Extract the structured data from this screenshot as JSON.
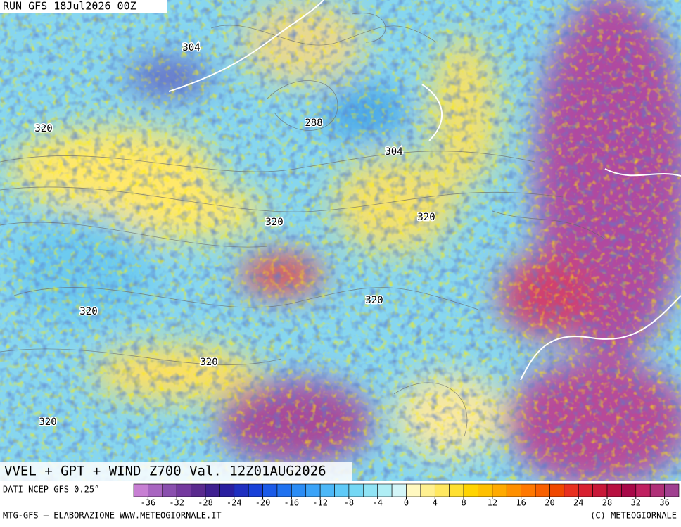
{
  "header": {
    "run": "RUN GFS 18Jul2026 00Z"
  },
  "map": {
    "contour_labels": [
      304,
      288,
      304,
      320,
      320,
      320,
      320,
      320,
      320,
      320
    ]
  },
  "footer": {
    "title": "VVEL + GPT + WIND Z700 Val. 12Z01AUG2026",
    "source": "DATI NCEP GFS 0.25°",
    "credit": "MTG-GFS — ELABORAZIONE WWW.METEOGIORNALE.IT",
    "copyright": "(C) METEOGIORNALE"
  },
  "colorbar": {
    "range": [
      -38,
      38
    ],
    "ticks": [
      -36,
      -32,
      -28,
      -24,
      -20,
      -16,
      -12,
      -8,
      -4,
      0,
      4,
      8,
      12,
      16,
      20,
      24,
      28,
      32,
      36
    ],
    "colors": [
      "#c77fd3",
      "#a865c0",
      "#8a4fae",
      "#74399e",
      "#5a2a8e",
      "#3f2090",
      "#2a1fa0",
      "#1f2fc0",
      "#1840d8",
      "#1a5ae8",
      "#1f72f0",
      "#2a8cf5",
      "#3aa3f8",
      "#4cb8f8",
      "#5fcaf8",
      "#75d8f5",
      "#90e4f5",
      "#b0eef5",
      "#d4f6f8",
      "#fff8c0",
      "#fff090",
      "#ffe860",
      "#ffe030",
      "#ffd400",
      "#ffc000",
      "#ffaa00",
      "#ff9000",
      "#ff7800",
      "#f86000",
      "#f04800",
      "#e83020",
      "#d82030",
      "#c81838",
      "#b81040",
      "#a80848",
      "#c02060",
      "#b03078",
      "#a04090"
    ]
  }
}
